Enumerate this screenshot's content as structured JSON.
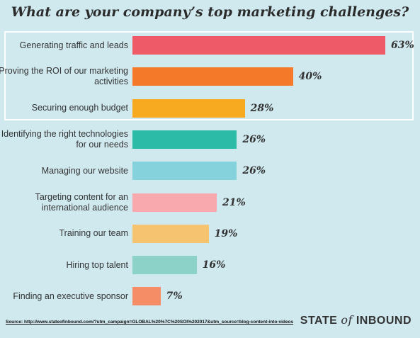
{
  "chart_data": {
    "type": "bar",
    "orientation": "horizontal",
    "title": "What are your company’s top marketing challenges?",
    "categories": [
      "Generating traffic and leads",
      "Proving the ROI of our marketing activities",
      "Securing enough budget",
      "Identifying the right technologies for our needs",
      "Managing our website",
      "Targeting content for an international audience",
      "Training our team",
      "Hiring top talent",
      "Finding an executive sponsor"
    ],
    "values": [
      63,
      40,
      28,
      26,
      26,
      21,
      19,
      16,
      7
    ],
    "value_labels": [
      "63%",
      "40%",
      "28%",
      "26%",
      "26%",
      "21%",
      "19%",
      "16%",
      "7%"
    ],
    "colors": [
      "#ee5a68",
      "#f47a2a",
      "#f7aa1f",
      "#2bbba6",
      "#85d1dc",
      "#f7a9ad",
      "#f6c470",
      "#8dd2c8",
      "#f58e66"
    ],
    "xlim": [
      0,
      63
    ],
    "highlighted_categories": 3,
    "grid": false
  },
  "footer": {
    "source": "Source: http://www.stateofinbound.com/?utm_campaign=GLOBAL%20%7C%20SOI%202017&utm_source=blog-content-into-videos",
    "brand_state": "STATE",
    "brand_of": "of",
    "brand_inbound": "INBOUND"
  }
}
